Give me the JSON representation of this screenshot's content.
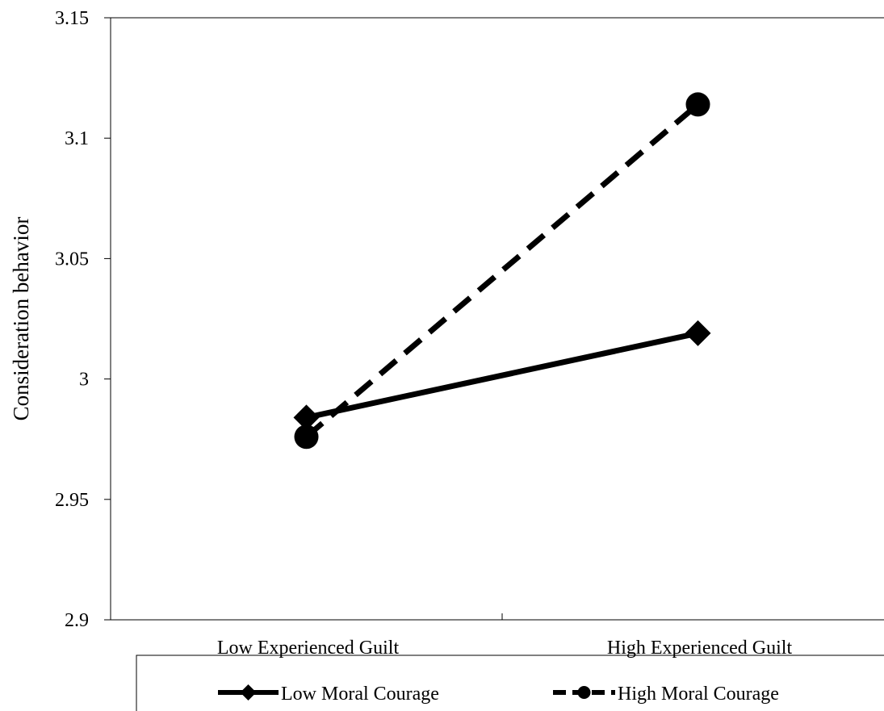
{
  "chart_data": {
    "type": "line",
    "title": "",
    "xlabel": "",
    "ylabel": "Consideration behavior",
    "categories": [
      "Low Experienced Guilt",
      "High Experienced Guilt"
    ],
    "ylim": [
      2.9,
      3.15
    ],
    "yticks": [
      "2.9",
      "2.95",
      "3",
      "3.05",
      "3.1",
      "3.15"
    ],
    "grid": false,
    "legend_position": "bottom",
    "series": [
      {
        "name": "Low Moral Courage",
        "values": [
          2.984,
          3.019
        ],
        "line_style": "solid",
        "marker": "diamond",
        "color": "#000000"
      },
      {
        "name": "High Moral Courage",
        "values": [
          2.976,
          3.114
        ],
        "line_style": "dashed",
        "marker": "circle",
        "color": "#000000"
      }
    ]
  }
}
